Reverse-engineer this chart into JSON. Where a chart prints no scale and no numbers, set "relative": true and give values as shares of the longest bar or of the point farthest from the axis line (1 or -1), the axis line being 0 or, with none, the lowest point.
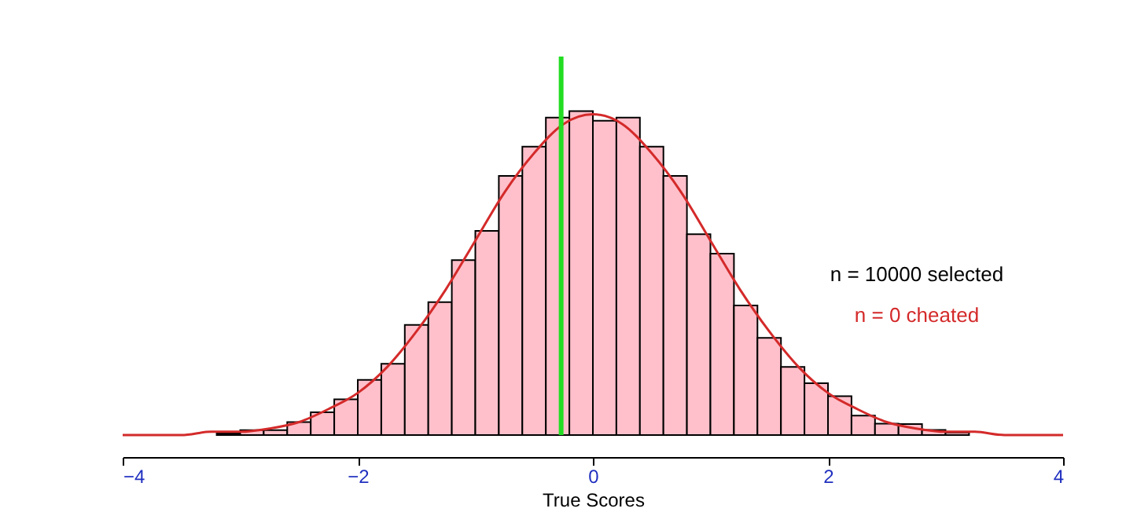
{
  "chart_data": {
    "type": "histogram",
    "relative": true,
    "xlabel": "True Scores",
    "xlim": [
      -4,
      4
    ],
    "xticks": [
      -4,
      -2,
      0,
      2,
      4
    ],
    "tick_labels": "x",
    "grid": false,
    "bins": [
      -3.6,
      -3.4,
      -3.2,
      -3.0,
      -2.8,
      -2.6,
      -2.4,
      -2.2,
      -2.0,
      -1.8,
      -1.6,
      -1.4,
      -1.2,
      -1.0,
      -0.8,
      -0.6,
      -0.4,
      -0.2,
      0,
      0.2,
      0.4,
      0.6,
      0.8,
      1.0,
      1.2,
      1.4,
      1.6,
      1.8,
      2.0,
      2.2,
      2.4,
      2.6,
      2.8,
      3.0,
      3.2,
      3.4,
      3.6
    ],
    "values": [
      null,
      null,
      0.005,
      0.015,
      0.015,
      0.04,
      0.07,
      0.11,
      0.17,
      0.22,
      0.34,
      0.41,
      0.54,
      0.63,
      0.8,
      0.89,
      0.98,
      1,
      0.97,
      0.98,
      0.89,
      0.8,
      0.62,
      0.56,
      0.4,
      0.3,
      0.21,
      0.16,
      0.12,
      0.06,
      0.035,
      0.034,
      0.016,
      0.008,
      null,
      null
    ],
    "color": "#ffc0cb",
    "series": [
      {
        "type": "line",
        "color": "#d42a2a",
        "x": [
          -4,
          -3.75,
          -3.5,
          -3.25,
          -3,
          -2.75,
          -2.5,
          -2.25,
          -2,
          -1.75,
          -1.5,
          -1.25,
          -1,
          -0.75,
          -0.5,
          -0.25,
          0,
          0.25,
          0.5,
          0.75,
          1,
          1.25,
          1.5,
          1.75,
          2,
          2.25,
          2.5,
          2.75,
          3,
          3.25,
          3.5,
          3.75,
          4
        ],
        "values": [
          0,
          0,
          0,
          0.01,
          0.01,
          0.02,
          0.04,
          0.08,
          0.13,
          0.21,
          0.32,
          0.45,
          0.6,
          0.75,
          0.87,
          0.96,
          0.99,
          0.96,
          0.87,
          0.75,
          0.6,
          0.45,
          0.32,
          0.21,
          0.13,
          0.08,
          0.04,
          0.02,
          0.01,
          0.01,
          0,
          0,
          0
        ]
      }
    ],
    "ref_lines": [
      {
        "axis": "x",
        "value": -0.27,
        "label": null,
        "color": "#22dd22"
      }
    ],
    "annotations": [
      "n = 10000 selected",
      "n = 0 cheated"
    ]
  }
}
